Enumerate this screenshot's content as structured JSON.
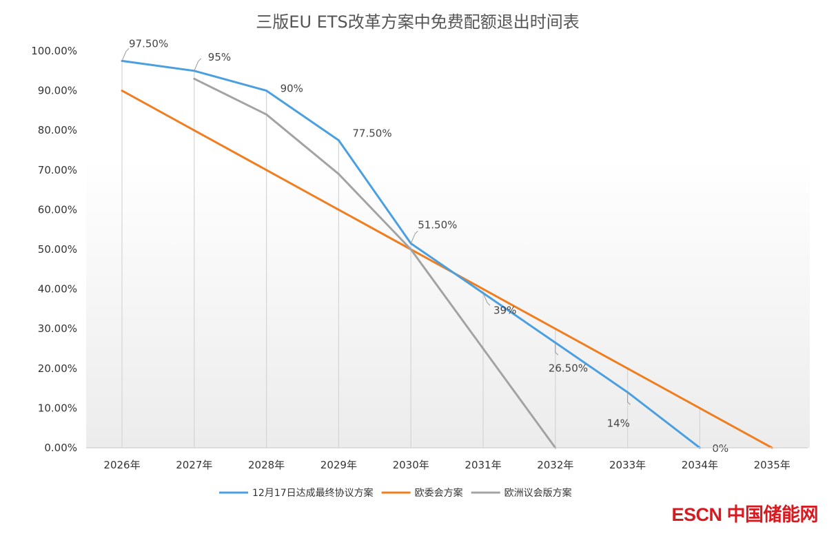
{
  "chart_data": {
    "type": "line",
    "title": "三版EU ETS改革方案中免费配额退出时间表",
    "categories": [
      "2026年",
      "2027年",
      "2028年",
      "2029年",
      "2030年",
      "2031年",
      "2032年",
      "2033年",
      "2034年",
      "2035年"
    ],
    "ylim": [
      0,
      100
    ],
    "yticks": [
      "0.00%",
      "10.00%",
      "20.00%",
      "30.00%",
      "40.00%",
      "50.00%",
      "60.00%",
      "70.00%",
      "80.00%",
      "90.00%",
      "100.00%"
    ],
    "legend_position": "bottom",
    "series": [
      {
        "name": "12月17日达成最终协议方案",
        "color": "#4a9fe0",
        "values": [
          97.5,
          95,
          90,
          77.5,
          51.5,
          39,
          26.5,
          14,
          0,
          null
        ],
        "labels": [
          "97.50%",
          "95%",
          "90%",
          "77.50%",
          "51.50%",
          "39%",
          "26.50%",
          "14%",
          "0%",
          null
        ]
      },
      {
        "name": "欧委会方案",
        "color": "#f07d1f",
        "values": [
          90,
          80,
          70,
          60,
          50,
          40,
          30,
          20,
          10,
          0
        ]
      },
      {
        "name": "欧洲议会版方案",
        "color": "#a3a3a3",
        "values": [
          null,
          93,
          84,
          69,
          50,
          25,
          0,
          null,
          null,
          null
        ]
      }
    ]
  },
  "watermark": {
    "brand": "ESCN",
    "name": "中国储能网"
  }
}
